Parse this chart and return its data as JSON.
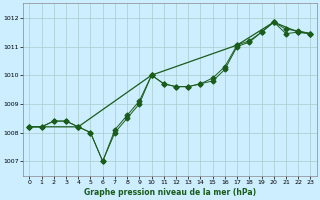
{
  "title": "Graphe pression niveau de la mer (hPa)",
  "bg_color": "#cceeff",
  "grid_color": "#aacccc",
  "line_color": "#1a5c1a",
  "xlim": [
    -0.5,
    23.5
  ],
  "ylim": [
    1006.5,
    1012.5
  ],
  "yticks": [
    1007,
    1008,
    1009,
    1010,
    1011,
    1012
  ],
  "xticks": [
    0,
    1,
    2,
    3,
    4,
    5,
    6,
    7,
    8,
    9,
    10,
    11,
    12,
    13,
    14,
    15,
    16,
    17,
    18,
    19,
    20,
    21,
    22,
    23
  ],
  "series1_x": [
    0,
    1,
    2,
    3,
    4,
    5,
    6,
    7,
    8,
    9,
    10,
    11,
    12,
    13,
    14,
    15,
    16,
    17,
    18,
    19,
    20,
    21,
    22,
    23
  ],
  "series1_y": [
    1008.2,
    1008.2,
    1008.4,
    1008.4,
    1008.2,
    1008.0,
    1007.0,
    1008.0,
    1008.5,
    1009.0,
    1010.0,
    1009.7,
    1009.6,
    1009.6,
    1009.7,
    1009.8,
    1010.2,
    1011.0,
    1011.15,
    1011.5,
    1011.85,
    1011.6,
    1011.55,
    1011.45
  ],
  "series2_x": [
    0,
    1,
    2,
    3,
    4,
    5,
    6,
    7,
    8,
    9,
    10,
    11,
    12,
    13,
    14,
    15,
    16,
    17,
    18,
    19,
    20,
    21,
    22,
    23
  ],
  "series2_y": [
    1008.2,
    1008.2,
    1008.4,
    1008.4,
    1008.2,
    1008.0,
    1007.0,
    1008.1,
    1008.6,
    1009.1,
    1010.0,
    1009.7,
    1009.6,
    1009.6,
    1009.7,
    1009.9,
    1010.3,
    1011.05,
    1011.2,
    1011.5,
    1011.85,
    1011.45,
    1011.5,
    1011.45
  ],
  "series3_x": [
    0,
    4,
    10,
    17,
    20,
    22,
    23
  ],
  "series3_y": [
    1008.2,
    1008.2,
    1010.0,
    1011.05,
    1011.85,
    1011.5,
    1011.45
  ],
  "marker_size": 2.5,
  "lw1": 0.7,
  "lw2": 0.7,
  "lw3": 0.9,
  "xlabel_fontsize": 5.5,
  "tick_fontsize": 4.5
}
